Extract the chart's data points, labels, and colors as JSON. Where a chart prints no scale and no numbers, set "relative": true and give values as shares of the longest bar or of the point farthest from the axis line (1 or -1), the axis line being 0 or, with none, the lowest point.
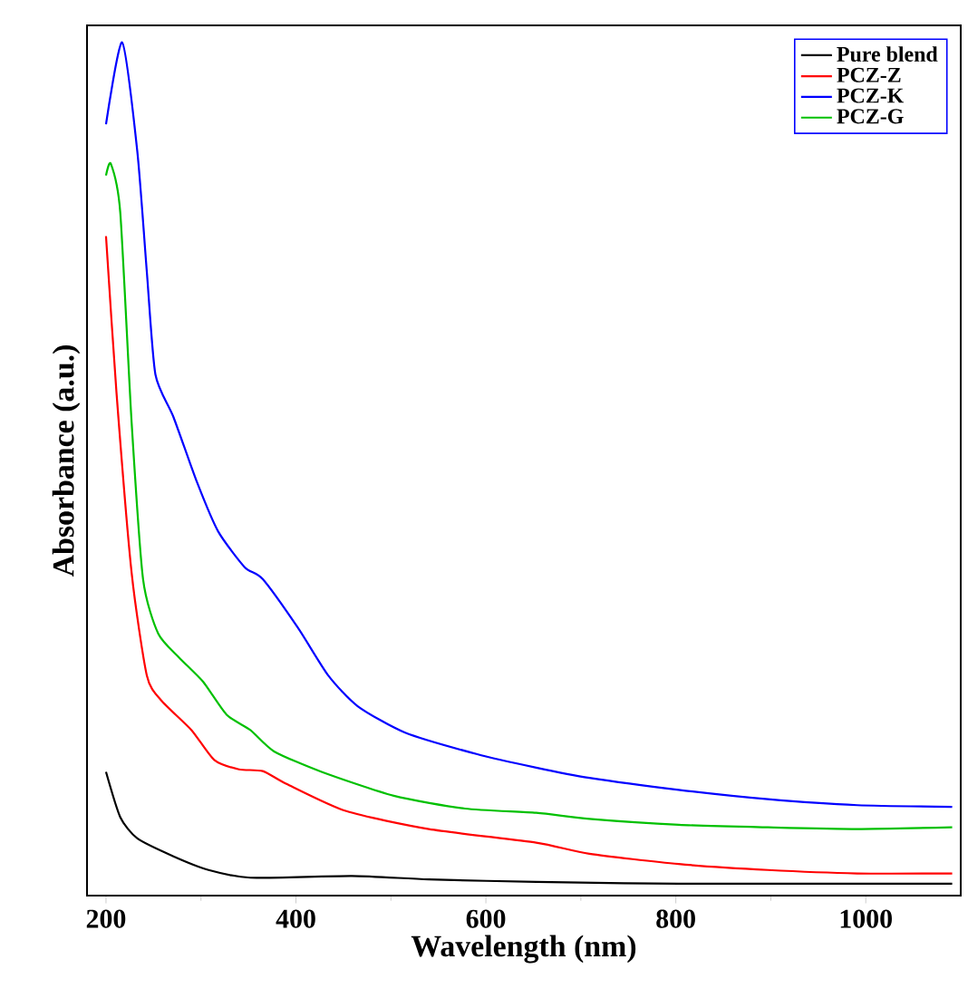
{
  "chart_data": {
    "type": "line",
    "xlabel": "Wavelength (nm)",
    "ylabel": "Absorbance (a.u.)",
    "relative": true,
    "xlim": [
      180,
      1100
    ],
    "xticks": [
      200,
      400,
      600,
      800,
      1000
    ],
    "legend": "top right",
    "series": [
      {
        "name": "Pure blend",
        "color": "#000000",
        "x": [
          200,
          215,
          233,
          271,
          308,
          352,
          459,
          540,
          653,
          803,
          1091
        ],
        "values": [
          0.145,
          0.092,
          0.067,
          0.046,
          0.03,
          0.021,
          0.023,
          0.019,
          0.016,
          0.014,
          0.014
        ]
      },
      {
        "name": "PCZ-Z",
        "color": "#ff0000",
        "x": [
          200,
          211,
          227,
          243,
          258,
          290,
          314,
          340,
          365,
          390,
          453,
          540,
          653,
          709,
          803,
          897,
          991,
          1091
        ],
        "values": [
          0.773,
          0.59,
          0.378,
          0.258,
          0.229,
          0.194,
          0.159,
          0.148,
          0.146,
          0.131,
          0.099,
          0.078,
          0.062,
          0.049,
          0.037,
          0.03,
          0.026,
          0.026
        ]
      },
      {
        "name": "PCZ-K",
        "color": "#0000ff",
        "x": [
          200,
          217,
          233,
          243,
          252,
          271,
          296,
          318,
          346,
          365,
          402,
          434,
          465,
          515,
          590,
          653,
          709,
          803,
          897,
          991,
          1091
        ],
        "values": [
          0.904,
          1.0,
          0.872,
          0.731,
          0.611,
          0.561,
          0.484,
          0.427,
          0.385,
          0.371,
          0.314,
          0.258,
          0.222,
          0.191,
          0.166,
          0.15,
          0.138,
          0.124,
          0.113,
          0.106,
          0.104
        ]
      },
      {
        "name": "PCZ-G",
        "color": "#00c000",
        "x": [
          200,
          205,
          215,
          227,
          239,
          255,
          277,
          302,
          327,
          352,
          377,
          427,
          503,
          578,
          653,
          709,
          803,
          897,
          991,
          1091
        ],
        "values": [
          0.844,
          0.858,
          0.801,
          0.554,
          0.371,
          0.307,
          0.279,
          0.251,
          0.212,
          0.194,
          0.169,
          0.145,
          0.117,
          0.102,
          0.097,
          0.09,
          0.083,
          0.08,
          0.078,
          0.08
        ]
      }
    ]
  }
}
